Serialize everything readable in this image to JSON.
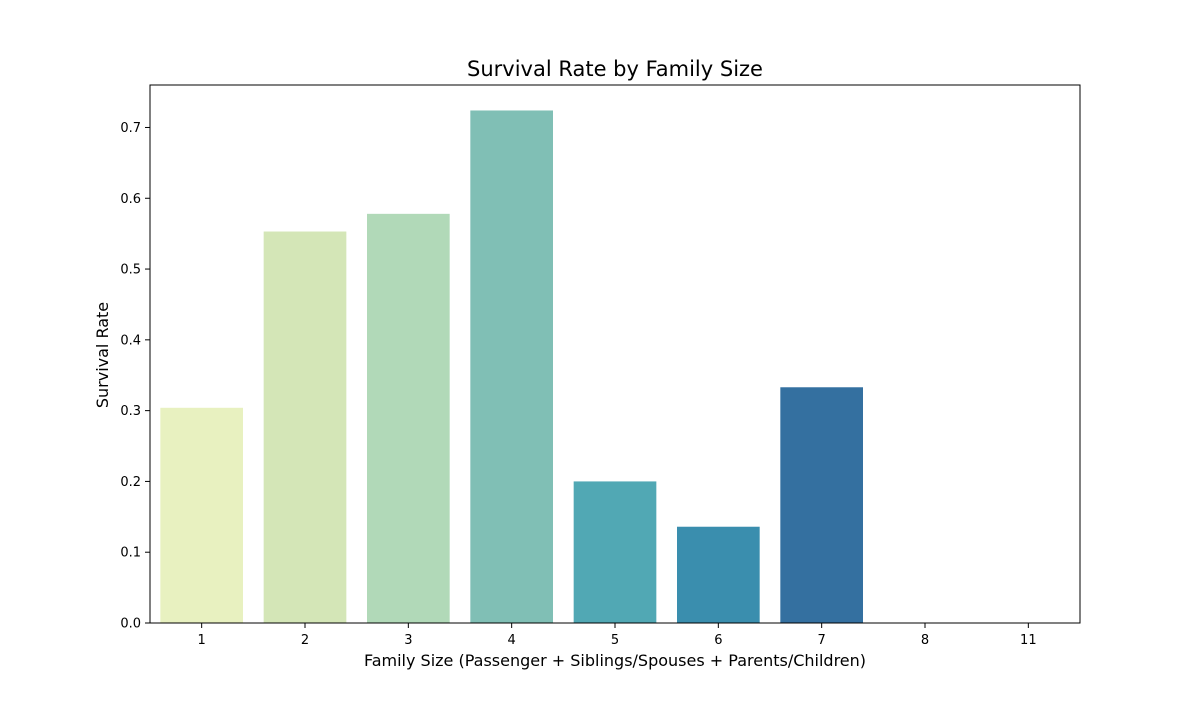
{
  "chart_data": {
    "type": "bar",
    "title": "Survival Rate by Family Size",
    "xlabel": "Family Size (Passenger + Siblings/Spouses + Parents/Children)",
    "ylabel": "Survival Rate",
    "categories": [
      "1",
      "2",
      "3",
      "4",
      "5",
      "6",
      "7",
      "8",
      "11"
    ],
    "values": [
      0.304,
      0.553,
      0.578,
      0.724,
      0.2,
      0.136,
      0.333,
      0.0,
      0.0
    ],
    "colors": [
      "#e8f1c0",
      "#d4e6b7",
      "#b1d9b8",
      "#80bfb5",
      "#51a8b4",
      "#3a8eae",
      "#3470a0",
      "#2a4f8c",
      "#1f3376"
    ],
    "ylim": [
      0,
      0.76
    ],
    "yticks": [
      0.0,
      0.1,
      0.2,
      0.3,
      0.4,
      0.5,
      0.6,
      0.7
    ],
    "grid": false,
    "legend": "none"
  }
}
